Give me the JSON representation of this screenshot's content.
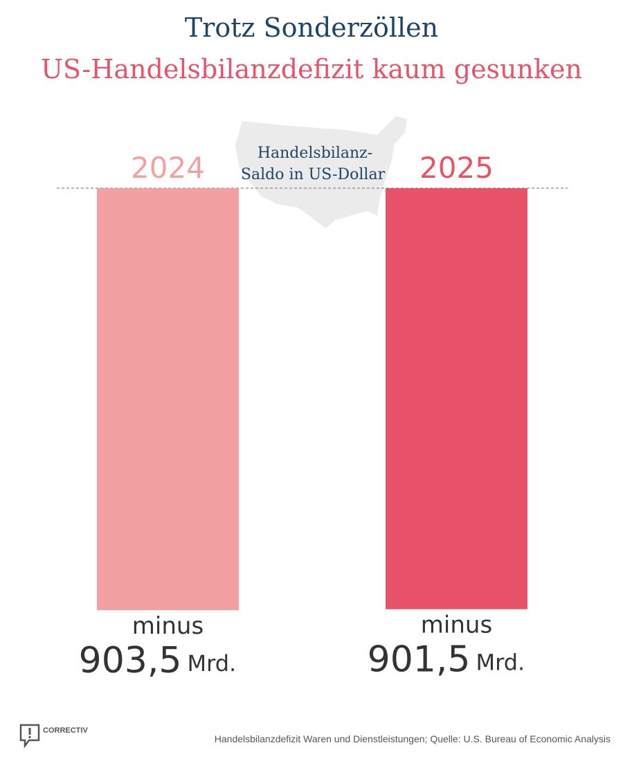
{
  "title": "Trotz Sonderzöllen",
  "subtitle": "US-Handelsbilanzdefizit kaum gesunken",
  "colors": {
    "bar_2024": "#f2a0a1",
    "bar_2025": "#e8536a",
    "title": "#1e4466",
    "subtitle": "#e8536a",
    "map": "#ebebeb"
  },
  "chart_data": {
    "type": "bar",
    "title": "Trotz Sonderzöllen – US-Handelsbilanzdefizit kaum gesunken",
    "annotation": "Handelsbilanz-Saldo in US-Dollar",
    "annotation_lines": [
      "Handelsbilanz-",
      "Saldo in US-Dollar"
    ],
    "categories": [
      "2024",
      "2025"
    ],
    "values": [
      -903.5,
      -901.5
    ],
    "unit": "Mrd. US-Dollar",
    "label_prefix": "minus",
    "value_labels": [
      "903,5",
      "901,5"
    ],
    "unit_label": "Mrd.",
    "ylim": [
      -903.5,
      0
    ],
    "grid": false,
    "zero_line": "dashed"
  },
  "footer": {
    "source": "Handelsbilanzdefizit Waren und Dienstleistungen; Quelle: U.S. Bureau of Economic Analysis",
    "logo": "CORRECTIV"
  }
}
